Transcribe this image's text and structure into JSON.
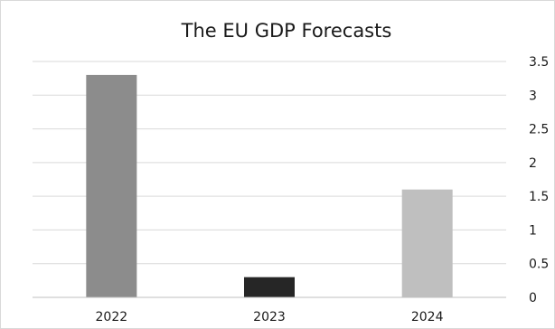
{
  "chart_data": {
    "type": "bar",
    "title": "The EU GDP Forecasts",
    "categories": [
      "2022",
      "2023",
      "2024"
    ],
    "values": [
      3.3,
      0.3,
      1.6
    ],
    "bar_colors": [
      "#8c8c8c",
      "#262626",
      "#bfbfbf"
    ],
    "ylim": [
      0,
      3.5
    ],
    "yticks": [
      "0",
      "0.5",
      "1",
      "1.5",
      "2",
      "2.5",
      "3",
      "3.5"
    ],
    "y_axis_side": "right",
    "grid": true,
    "legend": "none",
    "xlabel": "",
    "ylabel": ""
  }
}
